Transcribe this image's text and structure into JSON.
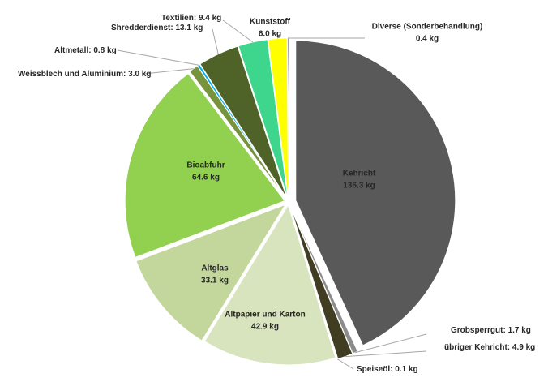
{
  "chart_data": {
    "type": "pie",
    "categories": [
      "Kehricht",
      "Grobsperrgut",
      "übriger Kehricht",
      "Speiseöl",
      "Altpapier und Karton",
      "Altglas",
      "Bioabfuhr",
      "Weissblech und Aluminium",
      "Altmetall",
      "Shredderdienst",
      "Textilien",
      "Kunststoff",
      "Diverse (Sonderbehandlung)"
    ],
    "values": [
      136.3,
      1.7,
      4.9,
      0.1,
      42.9,
      33.1,
      64.6,
      3.0,
      0.8,
      13.1,
      9.4,
      6.0,
      0.4
    ],
    "value_labels": [
      "136.3 kg",
      "1.7 kg",
      "4.9 kg",
      "0.1 kg",
      "42.9 kg",
      "33.1 kg",
      "64.6 kg",
      "3.0 kg",
      "0.8 kg",
      "13.1 kg",
      "9.4 kg",
      "6.0 kg",
      "0.4 kg"
    ],
    "label_separator": ": ",
    "colors": [
      "#595959",
      "#8c8c8c",
      "#403d22",
      "#bfbfbf",
      "#d7e4bd",
      "#c3d69b",
      "#92d050",
      "#77933c",
      "#00b0f0",
      "#4f6228",
      "#3dd68c",
      "#ffff00",
      "#c00000"
    ]
  }
}
